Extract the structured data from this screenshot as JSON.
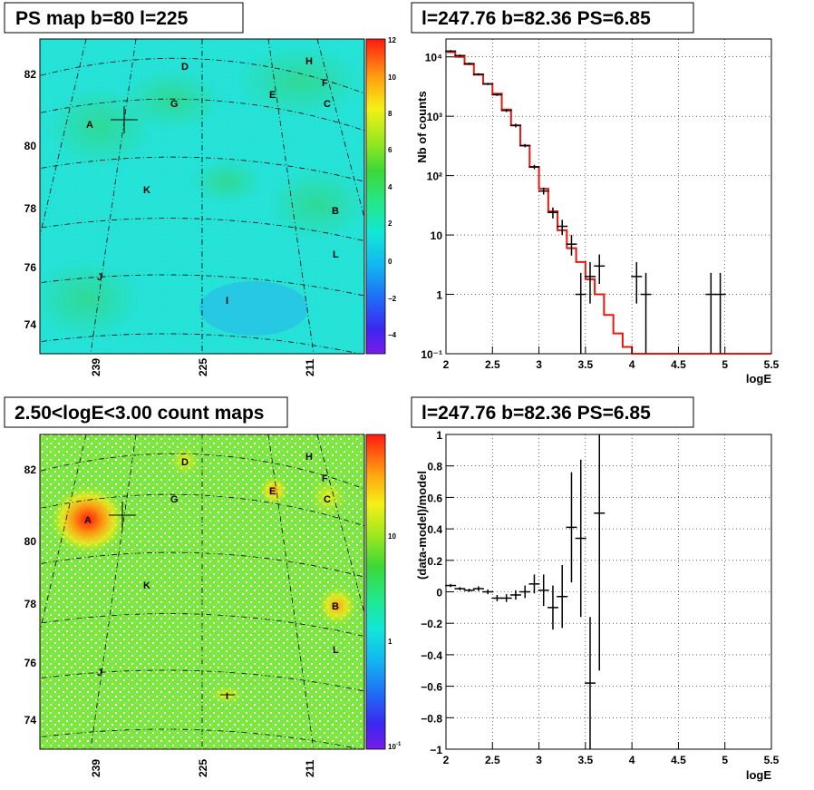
{
  "panels": {
    "ps_map": {
      "title": "PS map b=80 l=225",
      "x_ticks": [
        "239",
        "225",
        "211"
      ],
      "y_ticks": [
        "82",
        "80",
        "78",
        "76",
        "74"
      ],
      "colorbar_ticks": [
        "12",
        "10",
        "8",
        "6",
        "4",
        "2",
        "0",
        "−2",
        "−4"
      ]
    },
    "count_map": {
      "title": "2.50<logE<3.00 count maps",
      "x_ticks": [
        "239",
        "225",
        "211"
      ],
      "y_ticks": [
        "82",
        "80",
        "78",
        "76",
        "74"
      ],
      "colorbar_ticks": [
        "10",
        "1",
        "10"
      ],
      "colorbar_exp": "-1"
    },
    "sources": [
      "A",
      "B",
      "C",
      "D",
      "E",
      "F",
      "G",
      "H",
      "I",
      "J",
      "K",
      "L"
    ]
  },
  "chart_data": [
    {
      "type": "line",
      "title": "l=247.76 b=82.36 PS=6.85",
      "xlabel": "logE",
      "ylabel": "Nb of counts",
      "xlim": [
        2,
        5.5
      ],
      "ylim": [
        0.1,
        20000
      ],
      "yscale": "log",
      "grid": true,
      "x_ticks": [
        "2",
        "2.5",
        "3",
        "3.5",
        "4",
        "4.5",
        "5",
        "5.5"
      ],
      "y_tick_labels": [
        "10⁻¹",
        "1",
        "10",
        "10²",
        "10³",
        "10⁴"
      ],
      "series": [
        {
          "style": "step-red",
          "x": [
            2.0,
            2.1,
            2.2,
            2.3,
            2.4,
            2.5,
            2.6,
            2.7,
            2.8,
            2.9,
            3.0,
            3.1,
            3.2,
            3.3,
            3.4,
            3.5,
            3.6,
            3.7,
            3.8,
            3.9,
            4.0,
            4.1,
            4.2,
            4.3,
            4.4,
            4.5,
            4.6,
            4.7,
            4.8,
            4.9,
            5.0,
            5.1,
            5.2,
            5.3,
            5.4,
            5.5
          ],
          "values": [
            12000,
            10000,
            7500,
            5000,
            3500,
            2400,
            1300,
            700,
            320,
            140,
            60,
            25,
            12,
            6,
            3.5,
            1.8,
            1.0,
            0.45,
            0.22,
            0.13,
            0.1,
            0.1,
            0.1,
            0.1,
            0.1,
            0.1,
            0.1,
            0.1,
            0.1,
            0.1,
            0.1,
            0.1,
            0.1,
            0.1,
            0.1,
            0.1
          ]
        },
        {
          "style": "points",
          "points": [
            {
              "x": 2.05,
              "y": 12500,
              "lo": 12000,
              "hi": 13000
            },
            {
              "x": 2.15,
              "y": 10500,
              "lo": 10000,
              "hi": 11000
            },
            {
              "x": 2.25,
              "y": 7700,
              "lo": 7400,
              "hi": 8000
            },
            {
              "x": 2.35,
              "y": 5100,
              "lo": 4900,
              "hi": 5300
            },
            {
              "x": 2.45,
              "y": 3500,
              "lo": 3350,
              "hi": 3650
            },
            {
              "x": 2.55,
              "y": 2300,
              "lo": 2200,
              "hi": 2400
            },
            {
              "x": 2.65,
              "y": 1250,
              "lo": 1180,
              "hi": 1320
            },
            {
              "x": 2.75,
              "y": 700,
              "lo": 650,
              "hi": 750
            },
            {
              "x": 2.85,
              "y": 320,
              "lo": 300,
              "hi": 340
            },
            {
              "x": 2.95,
              "y": 140,
              "lo": 128,
              "hi": 152
            },
            {
              "x": 3.05,
              "y": 55,
              "lo": 48,
              "hi": 63
            },
            {
              "x": 3.15,
              "y": 24,
              "lo": 19,
              "hi": 29
            },
            {
              "x": 3.25,
              "y": 14,
              "lo": 10,
              "hi": 18
            },
            {
              "x": 3.35,
              "y": 7,
              "lo": 4.5,
              "hi": 10
            },
            {
              "x": 3.45,
              "y": 1,
              "lo": 0.1,
              "hi": 2.3
            },
            {
              "x": 3.55,
              "y": 2,
              "lo": 0.7,
              "hi": 3.5
            },
            {
              "x": 3.65,
              "y": 3,
              "lo": 1.5,
              "hi": 4.7
            },
            {
              "x": 4.05,
              "y": 2,
              "lo": 0.7,
              "hi": 3.5
            },
            {
              "x": 4.15,
              "y": 1,
              "lo": 0.1,
              "hi": 2.3
            },
            {
              "x": 4.85,
              "y": 1,
              "lo": 0.1,
              "hi": 2.3
            },
            {
              "x": 4.95,
              "y": 1,
              "lo": 0.1,
              "hi": 2.3
            }
          ]
        }
      ]
    },
    {
      "type": "scatter",
      "title": "l=247.76 b=82.36 PS=6.85",
      "xlabel": "logE",
      "ylabel": "(data-model)/model",
      "xlim": [
        2,
        5.5
      ],
      "ylim": [
        -1,
        1
      ],
      "grid": true,
      "x_ticks": [
        "2",
        "2.5",
        "3",
        "3.5",
        "4",
        "4.5",
        "5",
        "5.5"
      ],
      "y_ticks": [
        "1",
        "0.8",
        "0.6",
        "0.4",
        "0.2",
        "0",
        "−0.2",
        "−0.4",
        "−0.6",
        "−0.8",
        "−1"
      ],
      "points": [
        {
          "x": 2.05,
          "y": 0.04,
          "err": 0.01
        },
        {
          "x": 2.15,
          "y": 0.02,
          "err": 0.01
        },
        {
          "x": 2.25,
          "y": 0.01,
          "err": 0.01
        },
        {
          "x": 2.35,
          "y": 0.02,
          "err": 0.015
        },
        {
          "x": 2.45,
          "y": 0.0,
          "err": 0.015
        },
        {
          "x": 2.55,
          "y": -0.04,
          "err": 0.02
        },
        {
          "x": 2.65,
          "y": -0.04,
          "err": 0.025
        },
        {
          "x": 2.75,
          "y": -0.02,
          "err": 0.03
        },
        {
          "x": 2.85,
          "y": 0.0,
          "err": 0.04
        },
        {
          "x": 2.95,
          "y": 0.05,
          "err": 0.06
        },
        {
          "x": 3.05,
          "y": 0.01,
          "err": 0.1
        },
        {
          "x": 3.15,
          "y": -0.1,
          "err": 0.14
        },
        {
          "x": 3.25,
          "y": -0.03,
          "err": 0.2
        },
        {
          "x": 3.35,
          "y": 0.41,
          "err": 0.35
        },
        {
          "x": 3.45,
          "y": 0.34,
          "err": 0.5
        },
        {
          "x": 3.55,
          "y": -0.58,
          "err": 0.42
        },
        {
          "x": 3.65,
          "y": 0.5,
          "err": 1.0
        }
      ]
    }
  ]
}
